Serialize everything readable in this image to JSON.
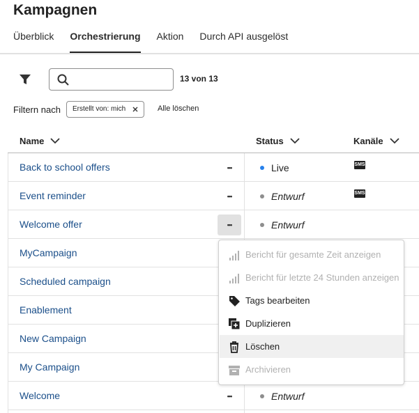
{
  "header": {
    "title": "Kampagnen"
  },
  "tabs": [
    {
      "label": "Überblick"
    },
    {
      "label": "Orchestrierung",
      "selected": true
    },
    {
      "label": "Aktion"
    },
    {
      "label": "Durch API ausgelöst"
    }
  ],
  "search": {
    "count": "13 von 13"
  },
  "filters": {
    "label": "Filtern nach",
    "chips": [
      "Erstellt von: mich"
    ],
    "clear": "Alle löschen"
  },
  "table": {
    "columns": [
      "Name",
      "Status",
      "Kanäle"
    ],
    "rows": [
      {
        "name": "Back to school offers",
        "status": "Live",
        "dot_color": "#2680eb",
        "channel": "SMS"
      },
      {
        "name": "Event reminder",
        "status": "Entwurf",
        "dot_color": "#8e8e8e",
        "channel": "SMS"
      },
      {
        "name": "Welcome offer",
        "status": "Entwurf",
        "dot_color": "#8e8e8e",
        "menu_open": true
      },
      {
        "name": "MyCampaign"
      },
      {
        "name": "Scheduled campaign"
      },
      {
        "name": "Enablement"
      },
      {
        "name": "New Campaign"
      },
      {
        "name": "My Campaign"
      },
      {
        "name": "Welcome",
        "status": "Entwurf",
        "dot_color": "#8e8e8e"
      }
    ]
  },
  "menu": {
    "items": [
      {
        "label": "Bericht für gesamte Zeit anzeigen",
        "disabled": true
      },
      {
        "label": "Bericht für letzte 24 Stunden anzeigen",
        "disabled": true
      },
      {
        "label": "Tags bearbeiten"
      },
      {
        "label": "Duplizieren"
      },
      {
        "label": "Löschen",
        "hovered": true
      },
      {
        "label": "Archivieren",
        "disabled": true
      }
    ]
  }
}
